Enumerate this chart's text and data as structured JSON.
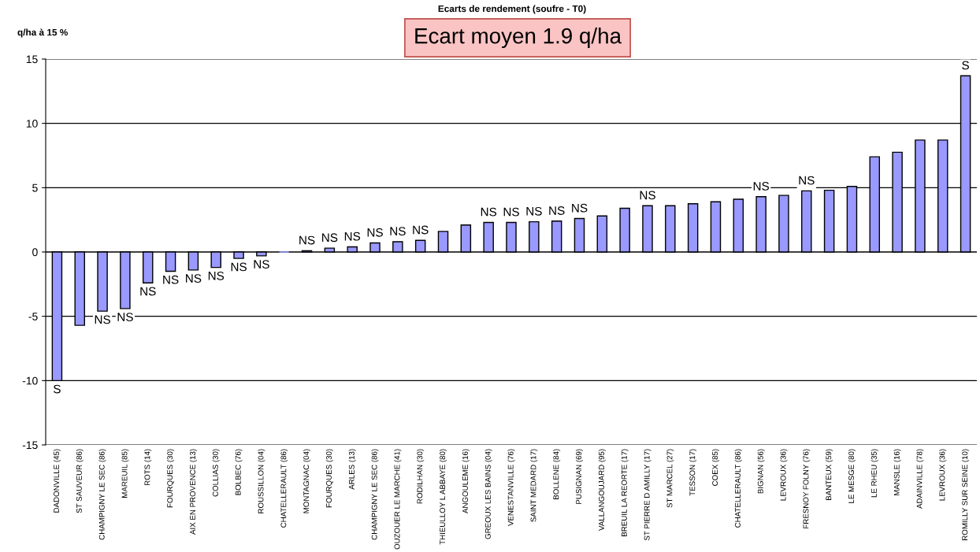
{
  "chart_data": {
    "type": "bar",
    "title": "Ecarts de rendement (soufre - T0)",
    "ylabel": "q/ha à 15 %",
    "categories": [
      "DADONVILLE (45)",
      "ST SAUVEUR (86)",
      "CHAMPIGNY LE SEC (86)",
      "MAREUIL (85)",
      "ROTS (14)",
      "FOURQUES (30)",
      "AIX EN PROVENCE (13)",
      "COLLIAS (30)",
      "BOLBEC (76)",
      "ROUSSILLON (04)",
      "CHATELLERAULT (86)",
      "MONTAGNAC (04)",
      "FOURQUES (30)",
      "ARLES (13)",
      "CHAMPIGNY LE SEC (86)",
      "OUZOUER LE MARCHE (41)",
      "RODILHAN (30)",
      "THIEULLOY L ABBAYE (80)",
      "ANGOULEME (16)",
      "GREOUX LES BAINS (04)",
      "VENESTANVILLE (76)",
      "SAINT MEDARD (17)",
      "BOLLENE (84)",
      "PUSIGNAN (69)",
      "VALLANGOUJARD (95)",
      "BREUIL LA REORTE (17)",
      "ST PIERRE D AMILLY (17)",
      "ST MARCEL (27)",
      "TESSON (17)",
      "COEX (85)",
      "CHATELLERAULT (86)",
      "BIGNAN (56)",
      "LEVROUX (36)",
      "FRESNOY FOLNY (76)",
      "BANTEUX (59)",
      "LE MESGE (80)",
      "LE RHEU (35)",
      "MANSLE (16)",
      "ADAINVILLE (78)",
      "LEVROUX (36)",
      "ROMILLY SUR SEINE (10)"
    ],
    "values": [
      -10.0,
      -5.7,
      -4.6,
      -4.4,
      -2.4,
      -1.5,
      -1.4,
      -1.2,
      -0.5,
      -0.3,
      0.0,
      0.1,
      0.3,
      0.4,
      0.7,
      0.8,
      0.9,
      1.6,
      2.1,
      2.3,
      2.3,
      2.35,
      2.4,
      2.6,
      2.8,
      3.4,
      3.6,
      3.6,
      3.75,
      3.9,
      4.1,
      4.3,
      4.4,
      4.75,
      4.8,
      5.1,
      7.4,
      7.75,
      8.7,
      8.7,
      13.7
    ],
    "value_labels": [
      "S",
      null,
      "NS",
      "NS",
      "NS",
      "NS",
      "NS",
      "NS",
      "NS",
      "NS",
      null,
      "NS",
      "NS",
      "NS",
      "NS",
      "NS",
      "NS",
      null,
      null,
      "NS",
      "NS",
      "NS",
      "NS",
      "NS",
      null,
      null,
      "NS",
      null,
      null,
      null,
      null,
      "NS",
      null,
      "NS",
      null,
      null,
      null,
      null,
      null,
      null,
      "S"
    ],
    "color": "#9999ff",
    "ylim": [
      -15,
      15
    ],
    "yticks": [
      -15,
      -10,
      -5,
      0,
      5,
      10,
      15
    ],
    "grid": "y",
    "annotations": [
      "Ecart moyen 1.9 q/ha"
    ]
  }
}
